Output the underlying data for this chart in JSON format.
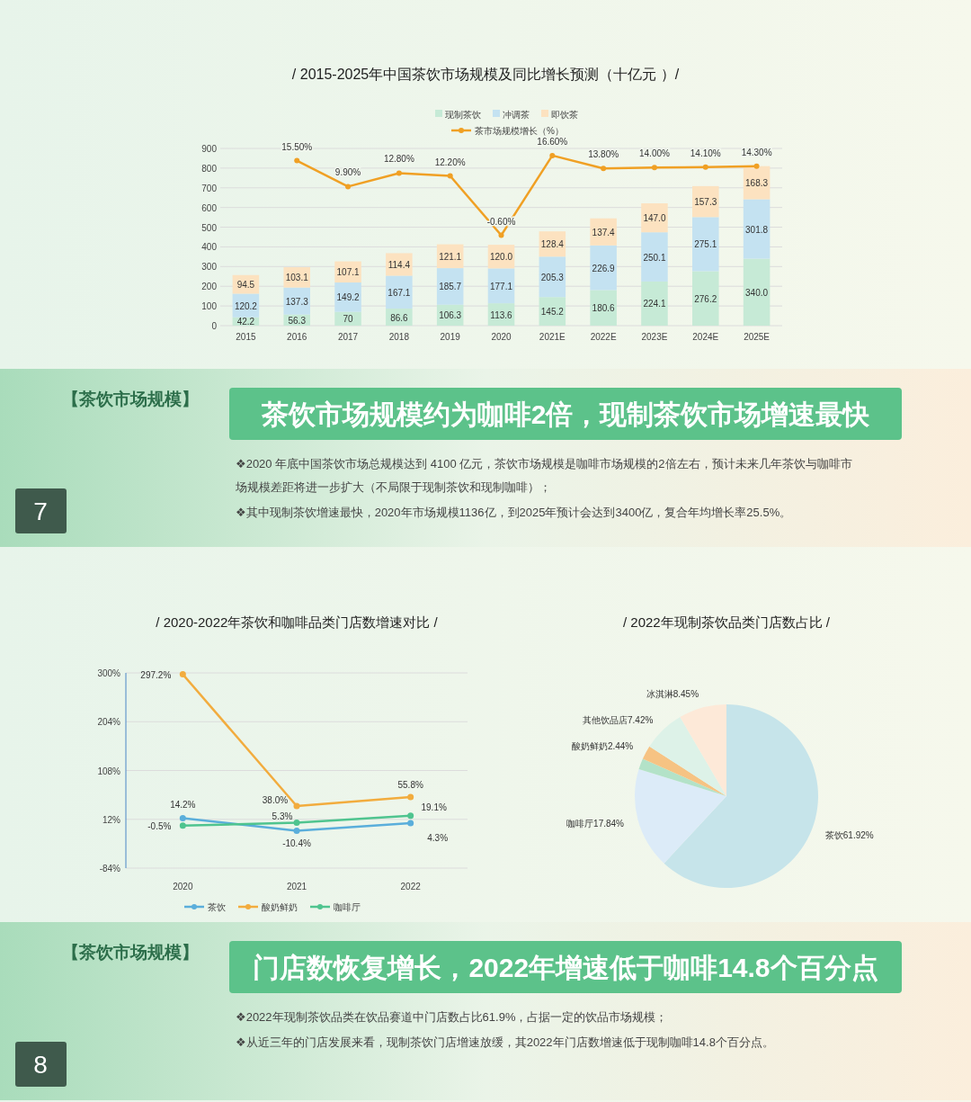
{
  "chart_data": [
    {
      "type": "bar",
      "title": "/ 2015-2025年中国茶饮市场规模及同比增长预测（十亿元 ）/",
      "categories": [
        "2015",
        "2016",
        "2017",
        "2018",
        "2019",
        "2020",
        "2021E",
        "2022E",
        "2023E",
        "2024E",
        "2025E"
      ],
      "stacked": true,
      "ylim": [
        0,
        900
      ],
      "yticks": [
        0,
        100,
        200,
        300,
        400,
        500,
        600,
        700,
        800,
        900
      ],
      "grid": "y",
      "legend": "top",
      "series": [
        {
          "name": "现制茶饮",
          "color": "#c6ead6",
          "values": [
            42.2,
            56.3,
            70,
            86.6,
            106.3,
            113.6,
            145.2,
            180.6,
            224.1,
            276.2,
            340.0
          ],
          "value_labels": [
            "42.2",
            "56.3",
            "70",
            "86.6",
            "106.3",
            "113.6",
            "145.2",
            "180.6",
            "224.1",
            "276.2",
            "340.0"
          ]
        },
        {
          "name": "冲调茶",
          "color": "#c4e2f1",
          "values": [
            120.2,
            137.3,
            149.2,
            167.1,
            185.7,
            177.1,
            205.3,
            226.9,
            250.1,
            275.1,
            301.8
          ],
          "value_labels": [
            "120.2",
            "137.3",
            "149.2",
            "167.1",
            "185.7",
            "177.1",
            "205.3",
            "226.9",
            "250.1",
            "275.1",
            "301.8"
          ]
        },
        {
          "name": "即饮茶",
          "color": "#fce2c0",
          "values": [
            94.5,
            103.1,
            107.1,
            114.4,
            121.1,
            120.0,
            128.4,
            137.4,
            147.0,
            157.3,
            168.3
          ],
          "value_labels": [
            "94.5",
            "103.1",
            "107.1",
            "114.4",
            "121.1",
            "120.0",
            "128.4",
            "137.4",
            "147.0",
            "157.3",
            "168.3"
          ]
        },
        {
          "name": "茶市场规模增长（%）",
          "type": "line",
          "axis": "y2",
          "marker": "circle",
          "color": "#f0a024",
          "values": [
            null,
            15.5,
            9.9,
            12.8,
            12.2,
            -0.6,
            16.6,
            13.8,
            14.0,
            14.1,
            14.3
          ],
          "value_labels": [
            null,
            "15.50%",
            "9.90%",
            "12.80%",
            "12.20%",
            "-0.60%",
            "16.60%",
            "13.80%",
            "14.00%",
            "14.10%",
            "14.30%"
          ]
        }
      ]
    },
    {
      "type": "other",
      "title": "【茶饮市场规模】",
      "subtitle": "茶饮市场规模约为咖啡2倍，现制茶饮市场增速最快",
      "annotations": [
        "❖2020 年底中国茶饮市场总规模达到 4100 亿元，茶饮市场规模是咖啡市场规模的2倍左右，预计未来几年茶饮与咖啡市场规模差距将进一步扩大（不局限于现制茶饮和现制咖啡）；",
        "❖其中现制茶饮增速最快，2020年市场规模1136亿，到2025年预计会达到3400亿，复合年均增长率25.5%。",
        "7"
      ]
    },
    {
      "type": "line",
      "title": "/ 2020-2022年茶饮和咖啡品类门店数增速对比 /",
      "categories": [
        "2020",
        "2021",
        "2022"
      ],
      "ylim": [
        -84,
        300
      ],
      "yticks": [
        {
          "value": -84,
          "label": "-84%"
        },
        {
          "value": 12,
          "label": "12%"
        },
        {
          "value": 108,
          "label": "108%"
        },
        {
          "value": 204,
          "label": "204%"
        },
        {
          "value": 300,
          "label": "300%"
        }
      ],
      "grid": "y",
      "legend": "bottom",
      "marker": "circle",
      "series": [
        {
          "name": "茶饮",
          "color": "#5aaedb",
          "values": [
            14.2,
            -10.4,
            4.3
          ],
          "value_labels": [
            "14.2%",
            "-10.4%",
            "4.3%"
          ]
        },
        {
          "name": "酸奶鲜奶",
          "color": "#f2ac3e",
          "values": [
            297.2,
            38.0,
            55.8
          ],
          "value_labels": [
            "297.2%",
            "38.0%",
            "55.8%"
          ]
        },
        {
          "name": "咖啡厅",
          "color": "#4fc48f",
          "values": [
            -0.5,
            5.3,
            19.1
          ],
          "value_labels": [
            "-0.5%",
            "5.3%",
            "19.1%"
          ]
        }
      ]
    },
    {
      "type": "pie",
      "title": "/ 2022年现制茶饮品类门店数占比 /",
      "categories": [
        "茶饮",
        "咖啡厅",
        null,
        "酸奶鲜奶",
        "其他饮品店",
        "冰淇淋"
      ],
      "values": [
        61.92,
        17.84,
        1.93,
        2.44,
        7.42,
        8.45
      ],
      "value_labels": [
        "61.92%",
        "17.84%",
        null,
        "2.44%",
        "7.42%",
        "8.45%"
      ],
      "colors": [
        "#c6e4ea",
        "#dcebf8",
        "#b3e2c8",
        "#f6c383",
        "#ddf2e8",
        "#fde9d8"
      ]
    },
    {
      "type": "other",
      "title": "【茶饮市场规模】",
      "subtitle": "门店数恢复增长，2022年增速低于咖啡14.8个百分点",
      "annotations": [
        "❖2022年现制茶饮品类在饮品赛道中门店数占比61.9%，占据一定的饮品市场规模；",
        "❖从近三年的门店发展来看，现制茶饮门店增速放缓，其2022年门店数增速低于现制咖啡14.8个百分点。",
        "8"
      ]
    }
  ]
}
